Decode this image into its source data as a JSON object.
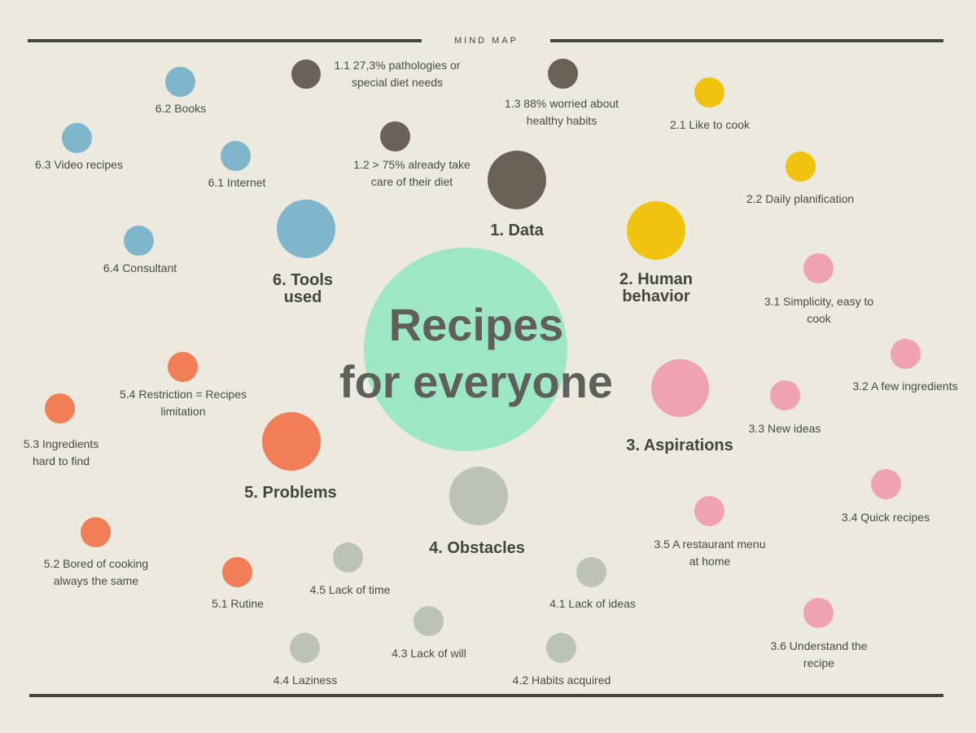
{
  "header": {
    "title": "MIND MAP"
  },
  "center": {
    "line1": "Recipes",
    "line2": "for everyone"
  },
  "colors": {
    "data": "#6b6257",
    "human_behavior": "#f0c30f",
    "aspirations": "#efa3b1",
    "obstacles": "#bcc3b6",
    "problems": "#f27e57",
    "tools": "#80b6cb",
    "center": "#9ee7c4",
    "background": "#ece9df"
  },
  "categories": {
    "data": {
      "label": "1. Data",
      "items": [
        {
          "line1": "1.1 27,3% pathologies or",
          "line2": "special diet needs"
        },
        {
          "line1": "1.2 > 75% already take",
          "line2": "care of their diet"
        },
        {
          "line1": "1.3 88% worried about",
          "line2": "healthy habits"
        }
      ]
    },
    "human_behavior": {
      "line1": "2. Human",
      "line2": "behavior",
      "items": [
        {
          "line1": "2.1 Like to cook"
        },
        {
          "line1": "2.2 Daily planification"
        }
      ]
    },
    "aspirations": {
      "label": "3. Aspirations",
      "items": [
        {
          "line1": "3.1 Simplicity, easy to",
          "line2": "cook"
        },
        {
          "line1": "3.2 A few ingredients"
        },
        {
          "line1": "3.3 New ideas"
        },
        {
          "line1": "3.4 Quick recipes"
        },
        {
          "line1": "3.5 A restaurant menu",
          "line2": "at home"
        },
        {
          "line1": "3.6 Understand  the",
          "line2": "recipe"
        }
      ]
    },
    "obstacles": {
      "label": "4. Obstacles",
      "items": [
        {
          "line1": "4.1 Lack of ideas"
        },
        {
          "line1": "4.2 Habits acquired"
        },
        {
          "line1": "4.3 Lack of will"
        },
        {
          "line1": "4.4 Laziness"
        },
        {
          "line1": "4.5 Lack of time"
        }
      ]
    },
    "problems": {
      "label": "5. Problems",
      "items": [
        {
          "line1": "5.1  Rutine"
        },
        {
          "line1": "5.2 Bored of cooking",
          "line2": "always the same"
        },
        {
          "line1": "5.3 Ingredients",
          "line2": "hard to find"
        },
        {
          "line1": "5.4 Restriction = Recipes",
          "line2": "limitation"
        }
      ]
    },
    "tools": {
      "line1": "6. Tools",
      "line2": "used",
      "items": [
        {
          "line1": "6.1 Internet"
        },
        {
          "line1": "6.2 Books"
        },
        {
          "line1": "6.3 Video recipes"
        },
        {
          "line1": "6.4 Consultant"
        }
      ]
    }
  }
}
